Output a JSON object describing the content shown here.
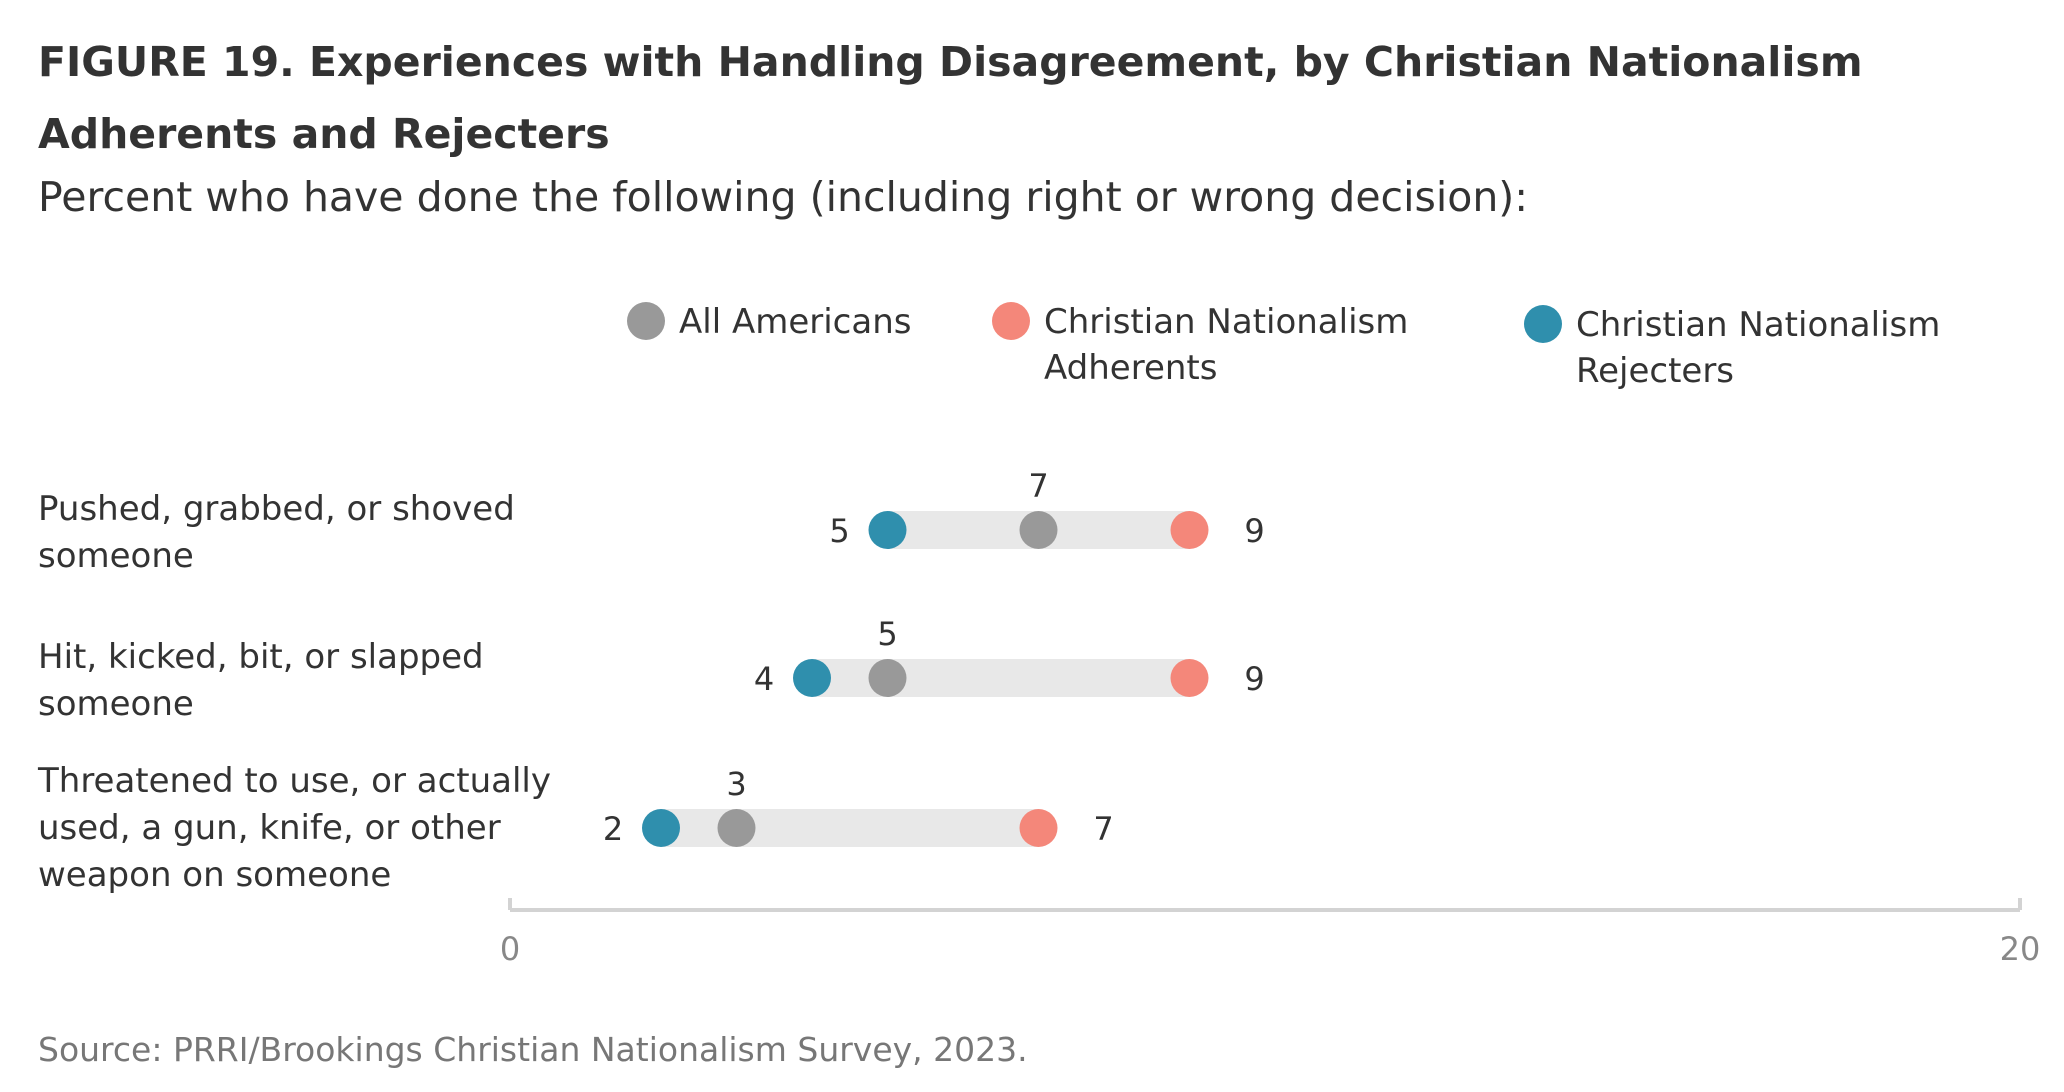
{
  "title": "FIGURE 19. Experiences with Handling Disagreement, by Christian Nationalism Adherents and Rejecters",
  "subtitle": "Percent who have done the following (including right or wrong decision):",
  "source": "Source: PRRI/Brookings Christian Nationalism Survey, 2023.",
  "chart_data": {
    "type": "dot",
    "xlim": [
      0,
      20
    ],
    "x_ticks": [
      "0",
      "20"
    ],
    "grid": false,
    "legend_position": "top",
    "categories": [
      [
        "Pushed, grabbed, or shoved",
        "someone"
      ],
      [
        "Hit, kicked, bit, or slapped",
        "someone"
      ],
      [
        "Threatened to use, or actually",
        "used, a gun, knife, or other",
        "weapon on someone"
      ]
    ],
    "series": [
      {
        "name": [
          "All Americans"
        ],
        "color": "#999999",
        "values": [
          7,
          5,
          3
        ]
      },
      {
        "name": [
          "Christian Nationalism",
          "Adherents"
        ],
        "color": "#f4877a",
        "values": [
          9,
          9,
          7
        ]
      },
      {
        "name": [
          "Christian Nationalism",
          "Rejecters"
        ],
        "color": "#2f8fad",
        "values": [
          5,
          4,
          2
        ]
      }
    ],
    "range_bar_color": "#e8e8e8",
    "axis_color": "#d3d3d3"
  }
}
